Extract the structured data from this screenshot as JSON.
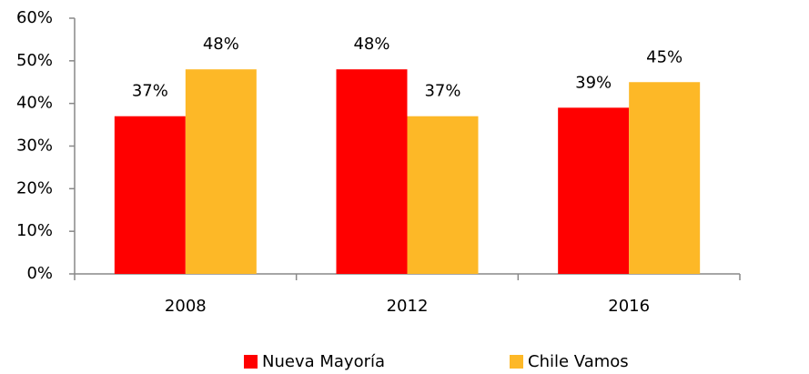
{
  "chart_data": {
    "type": "bar",
    "categories": [
      "2008",
      "2012",
      "2016"
    ],
    "series": [
      {
        "name": "Nueva Mayoría",
        "color": "#ff0000",
        "values": [
          37,
          48,
          39
        ],
        "value_labels": [
          "37%",
          "48%",
          "39%"
        ]
      },
      {
        "name": "Chile Vamos",
        "color": "#fdb827",
        "values": [
          48,
          37,
          45
        ],
        "value_labels": [
          "48%",
          "37%",
          "45%"
        ]
      }
    ],
    "ylim": [
      0,
      60
    ],
    "yticks": [
      {
        "value": 0,
        "label": "0%"
      },
      {
        "value": 10,
        "label": "10%"
      },
      {
        "value": 20,
        "label": "20%"
      },
      {
        "value": 30,
        "label": "30%"
      },
      {
        "value": 40,
        "label": "40%"
      },
      {
        "value": 50,
        "label": "50%"
      },
      {
        "value": 60,
        "label": "60%"
      }
    ],
    "grid": false,
    "legend": "bottom"
  }
}
